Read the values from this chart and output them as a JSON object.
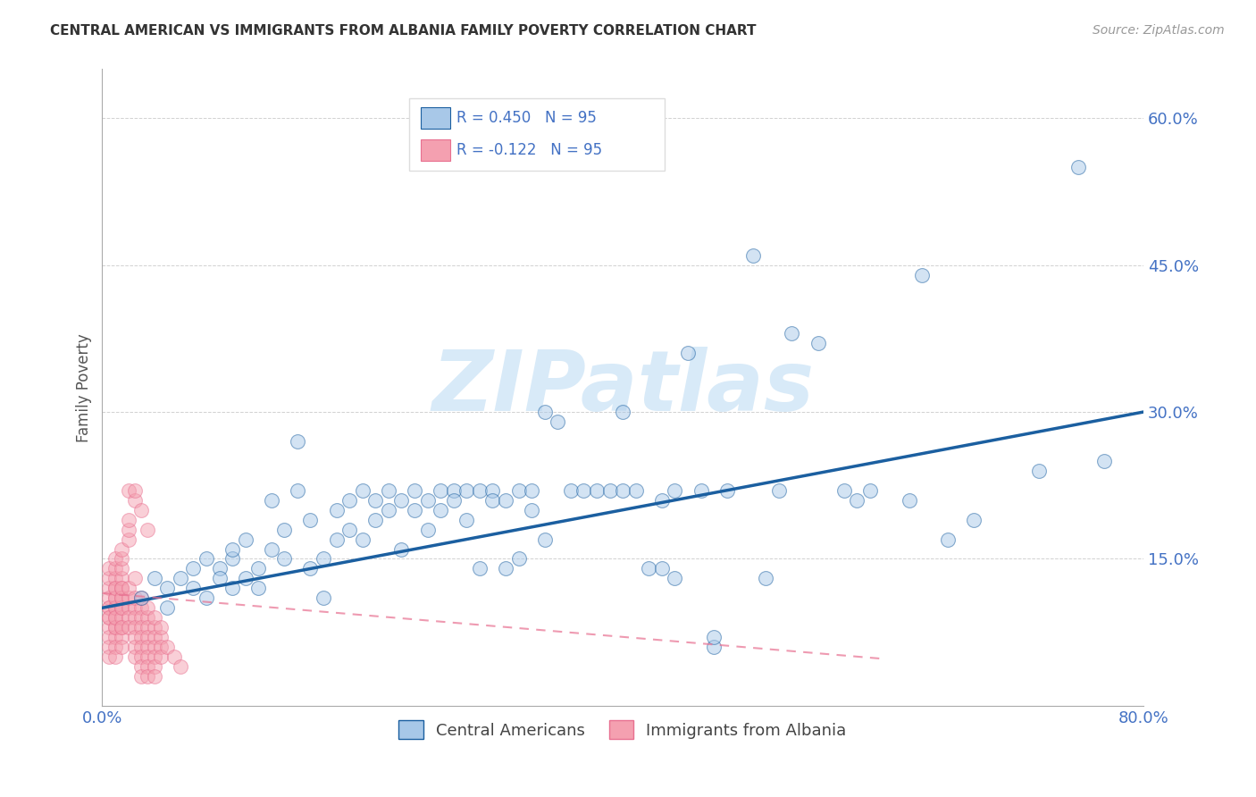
{
  "title": "CENTRAL AMERICAN VS IMMIGRANTS FROM ALBANIA FAMILY POVERTY CORRELATION CHART",
  "source": "Source: ZipAtlas.com",
  "ylabel": "Family Poverty",
  "series1_label": "Central Americans",
  "series2_label": "Immigrants from Albania",
  "r1": 0.45,
  "r2": -0.122,
  "n1": 95,
  "n2": 95,
  "xlim": [
    0.0,
    0.8
  ],
  "ylim": [
    0.0,
    0.65
  ],
  "xticks": [
    0.0,
    0.2,
    0.4,
    0.6,
    0.8
  ],
  "yticks": [
    0.15,
    0.3,
    0.45,
    0.6
  ],
  "xticklabels": [
    "0.0%",
    "",
    "",
    "",
    "80.0%"
  ],
  "yticklabels": [
    "15.0%",
    "30.0%",
    "45.0%",
    "60.0%"
  ],
  "color1": "#A8C8E8",
  "color2": "#F4A0B0",
  "trendline1_color": "#1B5FA0",
  "trendline2_color": "#E87090",
  "watermark": "ZIPatlas",
  "watermark_color": "#D8EAF8",
  "blue_scatter": [
    [
      0.03,
      0.11
    ],
    [
      0.04,
      0.13
    ],
    [
      0.05,
      0.1
    ],
    [
      0.05,
      0.12
    ],
    [
      0.06,
      0.13
    ],
    [
      0.07,
      0.14
    ],
    [
      0.07,
      0.12
    ],
    [
      0.08,
      0.15
    ],
    [
      0.08,
      0.11
    ],
    [
      0.09,
      0.14
    ],
    [
      0.09,
      0.13
    ],
    [
      0.1,
      0.15
    ],
    [
      0.1,
      0.12
    ],
    [
      0.1,
      0.16
    ],
    [
      0.11,
      0.13
    ],
    [
      0.11,
      0.17
    ],
    [
      0.12,
      0.14
    ],
    [
      0.12,
      0.12
    ],
    [
      0.13,
      0.16
    ],
    [
      0.13,
      0.21
    ],
    [
      0.14,
      0.18
    ],
    [
      0.14,
      0.15
    ],
    [
      0.15,
      0.27
    ],
    [
      0.15,
      0.22
    ],
    [
      0.16,
      0.19
    ],
    [
      0.16,
      0.14
    ],
    [
      0.17,
      0.15
    ],
    [
      0.17,
      0.11
    ],
    [
      0.18,
      0.2
    ],
    [
      0.18,
      0.17
    ],
    [
      0.19,
      0.21
    ],
    [
      0.19,
      0.18
    ],
    [
      0.2,
      0.17
    ],
    [
      0.2,
      0.22
    ],
    [
      0.21,
      0.19
    ],
    [
      0.21,
      0.21
    ],
    [
      0.22,
      0.2
    ],
    [
      0.22,
      0.22
    ],
    [
      0.23,
      0.21
    ],
    [
      0.23,
      0.16
    ],
    [
      0.24,
      0.22
    ],
    [
      0.24,
      0.2
    ],
    [
      0.25,
      0.21
    ],
    [
      0.25,
      0.18
    ],
    [
      0.26,
      0.2
    ],
    [
      0.26,
      0.22
    ],
    [
      0.27,
      0.22
    ],
    [
      0.27,
      0.21
    ],
    [
      0.28,
      0.22
    ],
    [
      0.28,
      0.19
    ],
    [
      0.29,
      0.22
    ],
    [
      0.29,
      0.14
    ],
    [
      0.3,
      0.22
    ],
    [
      0.3,
      0.21
    ],
    [
      0.31,
      0.21
    ],
    [
      0.31,
      0.14
    ],
    [
      0.32,
      0.22
    ],
    [
      0.32,
      0.15
    ],
    [
      0.33,
      0.22
    ],
    [
      0.33,
      0.2
    ],
    [
      0.34,
      0.17
    ],
    [
      0.34,
      0.3
    ],
    [
      0.35,
      0.29
    ],
    [
      0.36,
      0.22
    ],
    [
      0.37,
      0.22
    ],
    [
      0.38,
      0.22
    ],
    [
      0.39,
      0.22
    ],
    [
      0.4,
      0.3
    ],
    [
      0.4,
      0.22
    ],
    [
      0.41,
      0.22
    ],
    [
      0.42,
      0.14
    ],
    [
      0.43,
      0.21
    ],
    [
      0.43,
      0.14
    ],
    [
      0.44,
      0.13
    ],
    [
      0.44,
      0.22
    ],
    [
      0.45,
      0.36
    ],
    [
      0.46,
      0.22
    ],
    [
      0.47,
      0.06
    ],
    [
      0.47,
      0.07
    ],
    [
      0.48,
      0.22
    ],
    [
      0.5,
      0.46
    ],
    [
      0.51,
      0.13
    ],
    [
      0.52,
      0.22
    ],
    [
      0.53,
      0.38
    ],
    [
      0.55,
      0.37
    ],
    [
      0.57,
      0.22
    ],
    [
      0.58,
      0.21
    ],
    [
      0.59,
      0.22
    ],
    [
      0.62,
      0.21
    ],
    [
      0.63,
      0.44
    ],
    [
      0.65,
      0.17
    ],
    [
      0.67,
      0.19
    ],
    [
      0.72,
      0.24
    ],
    [
      0.75,
      0.55
    ],
    [
      0.77,
      0.25
    ]
  ],
  "pink_scatter": [
    [
      0.005,
      0.1
    ],
    [
      0.005,
      0.09
    ],
    [
      0.005,
      0.12
    ],
    [
      0.005,
      0.08
    ],
    [
      0.005,
      0.11
    ],
    [
      0.005,
      0.07
    ],
    [
      0.005,
      0.13
    ],
    [
      0.005,
      0.06
    ],
    [
      0.005,
      0.1
    ],
    [
      0.005,
      0.05
    ],
    [
      0.005,
      0.14
    ],
    [
      0.005,
      0.09
    ],
    [
      0.01,
      0.11
    ],
    [
      0.01,
      0.1
    ],
    [
      0.01,
      0.08
    ],
    [
      0.01,
      0.12
    ],
    [
      0.01,
      0.07
    ],
    [
      0.01,
      0.13
    ],
    [
      0.01,
      0.06
    ],
    [
      0.01,
      0.14
    ],
    [
      0.01,
      0.09
    ],
    [
      0.01,
      0.1
    ],
    [
      0.01,
      0.11
    ],
    [
      0.01,
      0.08
    ],
    [
      0.01,
      0.12
    ],
    [
      0.01,
      0.05
    ],
    [
      0.01,
      0.15
    ],
    [
      0.01,
      0.09
    ],
    [
      0.015,
      0.1
    ],
    [
      0.015,
      0.11
    ],
    [
      0.015,
      0.08
    ],
    [
      0.015,
      0.12
    ],
    [
      0.015,
      0.07
    ],
    [
      0.015,
      0.13
    ],
    [
      0.015,
      0.06
    ],
    [
      0.015,
      0.14
    ],
    [
      0.015,
      0.09
    ],
    [
      0.015,
      0.1
    ],
    [
      0.015,
      0.11
    ],
    [
      0.015,
      0.08
    ],
    [
      0.015,
      0.12
    ],
    [
      0.015,
      0.15
    ],
    [
      0.015,
      0.16
    ],
    [
      0.02,
      0.1
    ],
    [
      0.02,
      0.09
    ],
    [
      0.02,
      0.11
    ],
    [
      0.02,
      0.08
    ],
    [
      0.02,
      0.12
    ],
    [
      0.02,
      0.17
    ],
    [
      0.02,
      0.18
    ],
    [
      0.02,
      0.22
    ],
    [
      0.02,
      0.19
    ],
    [
      0.025,
      0.1
    ],
    [
      0.025,
      0.09
    ],
    [
      0.025,
      0.11
    ],
    [
      0.025,
      0.08
    ],
    [
      0.025,
      0.07
    ],
    [
      0.025,
      0.06
    ],
    [
      0.025,
      0.13
    ],
    [
      0.025,
      0.05
    ],
    [
      0.025,
      0.21
    ],
    [
      0.025,
      0.22
    ],
    [
      0.03,
      0.1
    ],
    [
      0.03,
      0.09
    ],
    [
      0.03,
      0.08
    ],
    [
      0.03,
      0.11
    ],
    [
      0.03,
      0.07
    ],
    [
      0.03,
      0.06
    ],
    [
      0.03,
      0.05
    ],
    [
      0.03,
      0.04
    ],
    [
      0.03,
      0.2
    ],
    [
      0.03,
      0.03
    ],
    [
      0.035,
      0.09
    ],
    [
      0.035,
      0.08
    ],
    [
      0.035,
      0.1
    ],
    [
      0.035,
      0.07
    ],
    [
      0.035,
      0.06
    ],
    [
      0.035,
      0.05
    ],
    [
      0.035,
      0.04
    ],
    [
      0.035,
      0.03
    ],
    [
      0.035,
      0.18
    ],
    [
      0.04,
      0.08
    ],
    [
      0.04,
      0.07
    ],
    [
      0.04,
      0.09
    ],
    [
      0.04,
      0.06
    ],
    [
      0.04,
      0.05
    ],
    [
      0.04,
      0.04
    ],
    [
      0.04,
      0.03
    ],
    [
      0.045,
      0.07
    ],
    [
      0.045,
      0.06
    ],
    [
      0.045,
      0.05
    ],
    [
      0.045,
      0.08
    ],
    [
      0.05,
      0.06
    ],
    [
      0.055,
      0.05
    ],
    [
      0.06,
      0.04
    ]
  ],
  "trendline1_x": [
    0.0,
    0.8
  ],
  "trendline1_y": [
    0.1,
    0.3
  ],
  "trendline2_x": [
    0.0,
    0.6
  ],
  "trendline2_y": [
    0.115,
    0.048
  ]
}
